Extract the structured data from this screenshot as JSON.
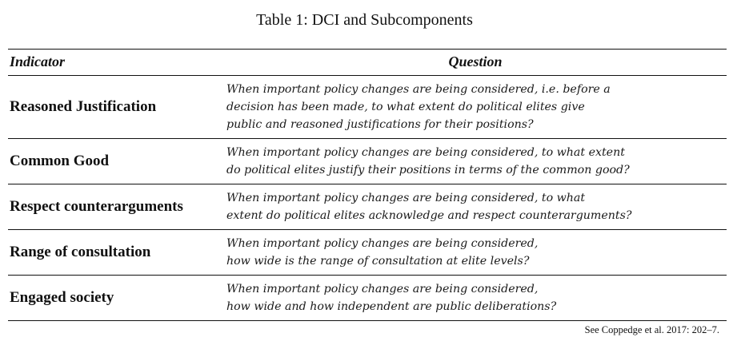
{
  "caption": "Table 1: DCI and Subcomponents",
  "headers": {
    "indicator": "Indicator",
    "question": "Question"
  },
  "rows": [
    {
      "indicator": "Reasoned Justification",
      "question_lines": [
        "When important policy changes are being considered, i.e. before a",
        "decision has been made, to what extent do political elites give",
        "public and reasoned justifications for their positions?"
      ]
    },
    {
      "indicator": "Common Good",
      "question_lines": [
        "When important policy changes are being considered, to what extent",
        "do political elites justify their positions in terms of the common good?"
      ]
    },
    {
      "indicator": "Respect counterarguments",
      "question_lines": [
        "When important policy changes are being considered, to what",
        "extent do political elites acknowledge and respect counterarguments?"
      ]
    },
    {
      "indicator": "Range of consultation",
      "question_lines": [
        "When important policy changes are being considered,",
        "how wide is the range of consultation at elite levels?"
      ]
    },
    {
      "indicator": "Engaged society",
      "question_lines": [
        "When important policy changes are being considered,",
        "how wide and how independent are public deliberations?"
      ]
    }
  ],
  "source_note": "See Coppedge et al. 2017: 202–7."
}
